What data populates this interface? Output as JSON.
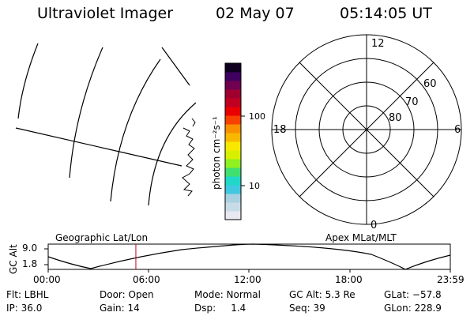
{
  "header": {
    "instrument": "Ultraviolet Imager",
    "date": "02 May 07",
    "time": "05:14:05 UT"
  },
  "colorbar": {
    "unit_label": "photon cm⁻²s⁻¹",
    "ticks": [
      "100",
      "10"
    ],
    "colors": [
      "#e8e8f0",
      "#c8dce8",
      "#a8d0e0",
      "#40c8e0",
      "#20d8c8",
      "#40e070",
      "#90f020",
      "#d8f000",
      "#f8e800",
      "#f8b800",
      "#f89000",
      "#f84000",
      "#e80000",
      "#c00020",
      "#a00030",
      "#700050",
      "#400060",
      "#100020"
    ]
  },
  "left_map": {
    "caption": "Geographic Lat/Lon"
  },
  "polar_plot": {
    "caption": "Apex MLat/MLT",
    "mlt_labels": {
      "top": "12",
      "bottom": "0",
      "left": "18",
      "right": "6"
    },
    "lat_labels": [
      "60",
      "70",
      "80"
    ]
  },
  "timeline": {
    "y_axis_label": "GC Alt",
    "y_ticks": [
      "9.0",
      "1.8"
    ],
    "x_ticks": [
      "00:00",
      "06:00",
      "12:00",
      "18:00",
      "23:59"
    ],
    "current_time_marker_fraction": 0.218,
    "marker_color": "#c00020"
  },
  "info": {
    "flt": "Flt: LBHL",
    "ip": "IP: 36.0",
    "door": "Door: Open",
    "gain": "Gain: 14",
    "mode": "Mode: Normal",
    "dsp": "Dsp:     1.4",
    "gcalt": "GC Alt: 5.3 Re",
    "seq": "Seq: 39",
    "glat": "GLat: −57.8",
    "glon": "GLon: 228.9"
  }
}
